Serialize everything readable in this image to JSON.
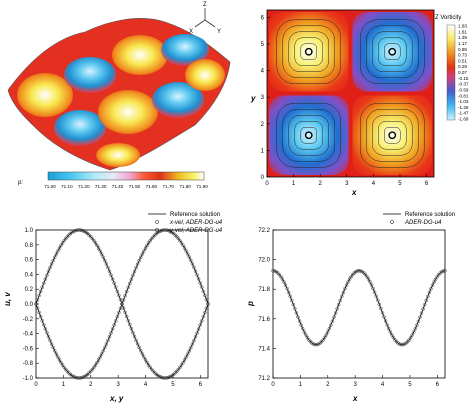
{
  "chart_data": [
    {
      "type": "surface",
      "axes_triad": {
        "x": "X",
        "y": "Y",
        "z": "Z"
      },
      "colorbar": {
        "label": "p:",
        "ticks": [
          "71.00",
          "71.10",
          "71.20",
          "71.30",
          "71.40",
          "71.50",
          "71.60",
          "71.70",
          "71.80",
          "71.90"
        ],
        "colors": [
          "#1e9bd6",
          "#3cc4ee",
          "#7ee0f6",
          "#c8f0fa",
          "#e0e0f0",
          "#f0b0d8",
          "#f87830",
          "#e83018",
          "#f0d020",
          "#ffffff"
        ]
      }
    },
    {
      "type": "heatmap",
      "colorbar": {
        "title": "Z Vorticity",
        "ticks": [
          "1.83",
          "1.61",
          "1.39",
          "1.17",
          "0.95",
          "0.73",
          "0.51",
          "0.29",
          "0.07",
          "-0.15",
          "-0.37",
          "-0.59",
          "-0.81",
          "-1.03",
          "-1.25",
          "-1.47",
          "-1.69"
        ]
      },
      "xlabel": "x",
      "ylabel": "y",
      "xticks": [
        "0",
        "1",
        "2",
        "3",
        "4",
        "5",
        "6"
      ],
      "yticks": [
        "0",
        "1",
        "2",
        "3",
        "4",
        "5",
        "6"
      ],
      "xlim": [
        0,
        6.28
      ],
      "ylim": [
        0,
        6.28
      ]
    },
    {
      "type": "line",
      "legend": [
        "Reference solution",
        "x-vel, ADER-DG-u4",
        "y-vel, ADER-DG-u4"
      ],
      "xlabel": "x, y",
      "ylabel": "u, v",
      "xlim": [
        0,
        6.28
      ],
      "ylim": [
        -1.0,
        1.0
      ],
      "xticks": [
        "0",
        "1",
        "2",
        "3",
        "4",
        "5",
        "6"
      ],
      "yticks": [
        "1.0",
        "0.8",
        "0.6",
        "0.4",
        "0.2",
        "0.0",
        "-0.2",
        "-0.4",
        "-0.6",
        "-0.8",
        "-1.0"
      ],
      "series": [
        {
          "name": "x-vel, ADER-DG-u4",
          "function": "sin(x)",
          "x": [
            0,
            0.785,
            1.571,
            2.356,
            3.142,
            3.927,
            4.712,
            5.498,
            6.283
          ],
          "values": [
            0,
            0.707,
            1.0,
            0.707,
            0,
            -0.707,
            -1.0,
            -0.707,
            0
          ]
        },
        {
          "name": "y-vel, ADER-DG-u4",
          "function": "-sin(y)",
          "x": [
            0,
            0.785,
            1.571,
            2.356,
            3.142,
            3.927,
            4.712,
            5.498,
            6.283
          ],
          "values": [
            0,
            -0.707,
            -1.0,
            -0.707,
            0,
            0.707,
            1.0,
            0.707,
            0
          ]
        }
      ]
    },
    {
      "type": "line",
      "legend": [
        "Reference solution",
        "ADER-DG-u4"
      ],
      "xlabel": "x",
      "ylabel": "p",
      "xlim": [
        0,
        6.28
      ],
      "ylim": [
        71.2,
        72.2
      ],
      "xticks": [
        "0",
        "1",
        "2",
        "3",
        "4",
        "5",
        "6"
      ],
      "yticks": [
        "72.2",
        "72.0",
        "71.8",
        "71.6",
        "71.4",
        "71.2"
      ],
      "series": [
        {
          "name": "ADER-DG-u4",
          "function": "71.675 + 0.25*cos(2x)",
          "x": [
            0,
            0.785,
            1.571,
            2.356,
            3.142,
            3.927,
            4.712,
            5.498,
            6.283
          ],
          "values": [
            71.925,
            71.675,
            71.425,
            71.675,
            71.925,
            71.675,
            71.425,
            71.675,
            71.925
          ]
        }
      ]
    }
  ]
}
